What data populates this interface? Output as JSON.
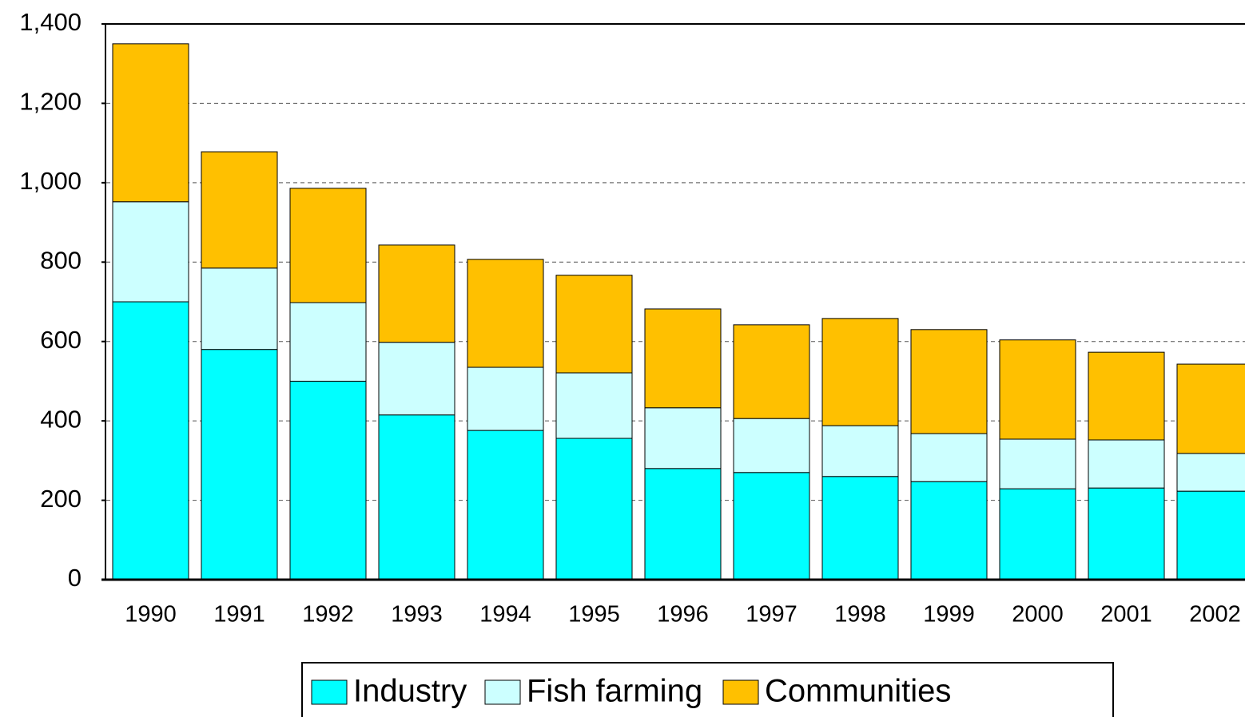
{
  "chart_data": {
    "type": "stacked_bar",
    "categories": [
      "1990",
      "1991",
      "1992",
      "1993",
      "1994",
      "1995",
      "1996",
      "1997",
      "1998",
      "1999",
      "2000",
      "2001",
      "2002"
    ],
    "series": [
      {
        "name": "Industry",
        "color": "#00ffff",
        "values": [
          700,
          580,
          500,
          415,
          376,
          356,
          280,
          270,
          260,
          247,
          229,
          231,
          223
        ]
      },
      {
        "name": "Fish farming",
        "color": "#ccffff",
        "values": [
          252,
          205,
          198,
          183,
          159,
          165,
          153,
          136,
          128,
          121,
          125,
          121,
          95
        ]
      },
      {
        "name": "Communities",
        "color": "#ffc000",
        "values": [
          398,
          293,
          288,
          245,
          272,
          246,
          249,
          236,
          270,
          262,
          250,
          221,
          225
        ]
      }
    ],
    "ylim": [
      0,
      1400
    ],
    "yticks": [
      0,
      200,
      400,
      600,
      800,
      {
        "value": 1000,
        "label": "1,000"
      },
      {
        "value": 1200,
        "label": "1,200"
      },
      {
        "value": 1400,
        "label": "1,400"
      }
    ],
    "grid": true,
    "legend": "bottom"
  }
}
